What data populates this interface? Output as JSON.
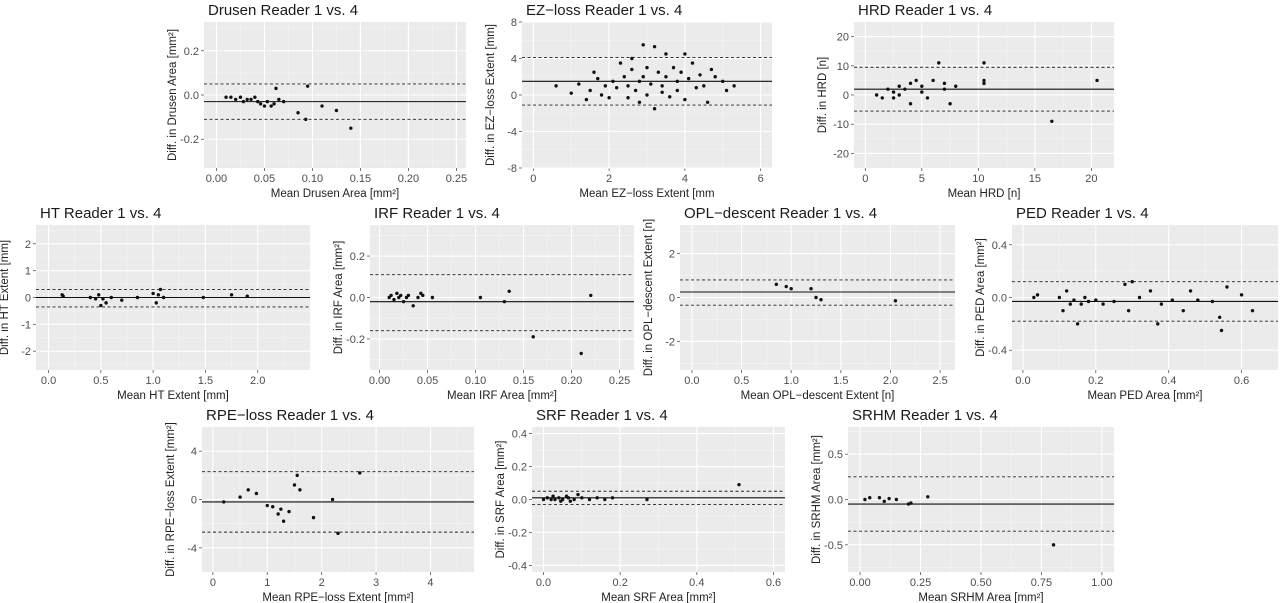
{
  "chart_data": [
    {
      "type": "scatter",
      "title": "Drusen Reader 1 vs. 4",
      "xlabel": "Mean Drusen Area [mm²]",
      "ylabel": "Diff. in Drusen Area [mm²]",
      "xlim": [
        -0.013,
        0.26
      ],
      "ylim": [
        -0.33,
        0.33
      ],
      "xticks": [
        0.0,
        0.05,
        0.1,
        0.15,
        0.2,
        0.25
      ],
      "xticklabels": [
        "0.00",
        "0.05",
        "0.10",
        "0.15",
        "0.20",
        "0.25"
      ],
      "yticks": [
        -0.2,
        0.0,
        0.2
      ],
      "yticklabels": [
        "-0.2",
        "0.0",
        "0.2"
      ],
      "mean_diff": -0.03,
      "upper_loa": 0.05,
      "lower_loa": -0.11,
      "points": [
        [
          0.01,
          -0.01
        ],
        [
          0.015,
          -0.01
        ],
        [
          0.02,
          -0.02
        ],
        [
          0.025,
          -0.01
        ],
        [
          0.028,
          -0.03
        ],
        [
          0.032,
          -0.02
        ],
        [
          0.036,
          -0.02
        ],
        [
          0.04,
          -0.01
        ],
        [
          0.043,
          -0.03
        ],
        [
          0.046,
          -0.04
        ],
        [
          0.05,
          -0.05
        ],
        [
          0.053,
          -0.03
        ],
        [
          0.057,
          -0.05
        ],
        [
          0.06,
          -0.04
        ],
        [
          0.062,
          0.03
        ],
        [
          0.065,
          -0.02
        ],
        [
          0.07,
          -0.03
        ],
        [
          0.085,
          -0.08
        ],
        [
          0.093,
          -0.11
        ],
        [
          0.095,
          0.04
        ],
        [
          0.11,
          -0.05
        ],
        [
          0.125,
          -0.07
        ],
        [
          0.14,
          -0.15
        ]
      ]
    },
    {
      "type": "scatter",
      "title": "EZ−loss Reader 1 vs. 4",
      "xlabel": "Mean EZ−loss Extent [mm",
      "ylabel": "Diff. in EZ−loss Extent [mm]",
      "xlim": [
        -0.3,
        6.3
      ],
      "ylim": [
        -8,
        8
      ],
      "xticks": [
        0,
        2,
        4,
        6
      ],
      "xticklabels": [
        "0",
        "2",
        "4",
        "6"
      ],
      "yticks": [
        -8,
        -4,
        0,
        4,
        8
      ],
      "yticklabels": [
        "-8",
        "-4",
        "0",
        "4",
        "8"
      ],
      "mean_diff": 1.5,
      "upper_loa": 4.1,
      "lower_loa": -1.1,
      "points": [
        [
          0.6,
          1.0
        ],
        [
          1.0,
          0.2
        ],
        [
          1.2,
          1.2
        ],
        [
          1.4,
          -0.5
        ],
        [
          1.5,
          0.5
        ],
        [
          1.6,
          2.5
        ],
        [
          1.7,
          1.8
        ],
        [
          1.8,
          0.0
        ],
        [
          1.9,
          1.0
        ],
        [
          2.0,
          -0.3
        ],
        [
          2.1,
          1.5
        ],
        [
          2.2,
          0.8
        ],
        [
          2.3,
          3.5
        ],
        [
          2.4,
          2.0
        ],
        [
          2.5,
          1.0
        ],
        [
          2.5,
          -0.3
        ],
        [
          2.6,
          4.0
        ],
        [
          2.6,
          2.8
        ],
        [
          2.7,
          0.5
        ],
        [
          2.8,
          1.5
        ],
        [
          2.8,
          -0.8
        ],
        [
          2.9,
          5.5
        ],
        [
          2.9,
          2.0
        ],
        [
          3.0,
          3.0
        ],
        [
          3.0,
          0.0
        ],
        [
          3.1,
          1.2
        ],
        [
          3.2,
          5.3
        ],
        [
          3.2,
          -1.5
        ],
        [
          3.3,
          2.5
        ],
        [
          3.4,
          1.0
        ],
        [
          3.4,
          0.3
        ],
        [
          3.5,
          4.5
        ],
        [
          3.5,
          2.0
        ],
        [
          3.6,
          -0.2
        ],
        [
          3.7,
          3.0
        ],
        [
          3.8,
          1.5
        ],
        [
          3.8,
          0.5
        ],
        [
          3.9,
          2.5
        ],
        [
          4.0,
          4.5
        ],
        [
          4.0,
          -0.5
        ],
        [
          4.1,
          1.8
        ],
        [
          4.2,
          3.5
        ],
        [
          4.3,
          0.8
        ],
        [
          4.4,
          2.2
        ],
        [
          4.5,
          1.0
        ],
        [
          4.6,
          -0.8
        ],
        [
          4.7,
          2.8
        ],
        [
          4.8,
          2.0
        ],
        [
          5.0,
          1.5
        ],
        [
          5.1,
          0.5
        ],
        [
          5.3,
          1.0
        ]
      ]
    },
    {
      "type": "scatter",
      "title": "HRD Reader 1 vs. 4",
      "xlabel": "Mean HRD [n]",
      "ylabel": "Diff. in HRD [n]",
      "xlim": [
        -1,
        22
      ],
      "ylim": [
        -25,
        25
      ],
      "xticks": [
        0,
        5,
        10,
        15,
        20
      ],
      "xticklabels": [
        "0",
        "5",
        "10",
        "15",
        "20"
      ],
      "yticks": [
        -20,
        -10,
        0,
        10,
        20
      ],
      "yticklabels": [
        "-20",
        "-10",
        "0",
        "10",
        "20"
      ],
      "mean_diff": 2,
      "upper_loa": 9.5,
      "lower_loa": -5.5,
      "points": [
        [
          1,
          0
        ],
        [
          1.5,
          -1
        ],
        [
          2,
          2
        ],
        [
          2.5,
          1
        ],
        [
          2.5,
          -1
        ],
        [
          3,
          3
        ],
        [
          3,
          0
        ],
        [
          3.5,
          2
        ],
        [
          4,
          -3
        ],
        [
          4,
          4
        ],
        [
          4.5,
          5
        ],
        [
          5,
          1
        ],
        [
          5,
          3
        ],
        [
          5.5,
          -1
        ],
        [
          6,
          5
        ],
        [
          6.5,
          11
        ],
        [
          7,
          2
        ],
        [
          7,
          4
        ],
        [
          7.5,
          -3
        ],
        [
          8,
          3
        ],
        [
          10.5,
          11
        ],
        [
          10.5,
          5
        ],
        [
          10.5,
          4
        ],
        [
          16.5,
          -9
        ],
        [
          20.5,
          5
        ]
      ]
    },
    {
      "type": "scatter",
      "title": "HT Reader 1 vs. 4",
      "xlabel": "Mean HT Extent [mm]",
      "ylabel": "Diff. in HT Extent [mm]",
      "xlim": [
        -0.12,
        2.5
      ],
      "ylim": [
        -2.7,
        2.7
      ],
      "xticks": [
        0.0,
        0.5,
        1.0,
        1.5,
        2.0
      ],
      "xticklabels": [
        "0.0",
        "0.5",
        "1.0",
        "1.5",
        "2.0"
      ],
      "yticks": [
        -2,
        -1,
        0,
        1,
        2
      ],
      "yticklabels": [
        "-2",
        "-1",
        "0",
        "1",
        "2"
      ],
      "mean_diff": 0.0,
      "upper_loa": 0.3,
      "lower_loa": -0.35,
      "points": [
        [
          0.13,
          0.1
        ],
        [
          0.14,
          0.05
        ],
        [
          0.4,
          0.0
        ],
        [
          0.45,
          -0.05
        ],
        [
          0.48,
          0.1
        ],
        [
          0.5,
          -0.3
        ],
        [
          0.52,
          -0.05
        ],
        [
          0.55,
          -0.2
        ],
        [
          0.6,
          0.0
        ],
        [
          0.7,
          -0.1
        ],
        [
          0.85,
          0.0
        ],
        [
          1.0,
          0.15
        ],
        [
          1.03,
          -0.2
        ],
        [
          1.05,
          0.1
        ],
        [
          1.07,
          0.3
        ],
        [
          1.1,
          0.0
        ],
        [
          1.48,
          0.0
        ],
        [
          1.75,
          0.1
        ],
        [
          1.9,
          0.05
        ]
      ]
    },
    {
      "type": "scatter",
      "title": "IRF Reader 1 vs. 4",
      "xlabel": "Mean IRF Area [mm²]",
      "ylabel": "Diff. in IRF Area [mm²]",
      "xlim": [
        -0.01,
        0.265
      ],
      "ylim": [
        -0.35,
        0.35
      ],
      "xticks": [
        0.0,
        0.05,
        0.1,
        0.15,
        0.2,
        0.25
      ],
      "xticklabels": [
        "0.00",
        "0.05",
        "0.10",
        "0.15",
        "0.20",
        "0.25"
      ],
      "yticks": [
        -0.2,
        0.0,
        0.2
      ],
      "yticklabels": [
        "-0.2",
        "0.0",
        "0.2"
      ],
      "mean_diff": -0.02,
      "upper_loa": 0.11,
      "lower_loa": -0.16,
      "points": [
        [
          0.01,
          0.0
        ],
        [
          0.012,
          0.01
        ],
        [
          0.015,
          -0.01
        ],
        [
          0.018,
          0.02
        ],
        [
          0.02,
          0.0
        ],
        [
          0.022,
          0.01
        ],
        [
          0.025,
          -0.02
        ],
        [
          0.028,
          0.0
        ],
        [
          0.03,
          0.01
        ],
        [
          0.035,
          -0.04
        ],
        [
          0.04,
          0.0
        ],
        [
          0.043,
          0.02
        ],
        [
          0.045,
          0.01
        ],
        [
          0.055,
          0.0
        ],
        [
          0.105,
          0.0
        ],
        [
          0.13,
          -0.02
        ],
        [
          0.135,
          0.03
        ],
        [
          0.16,
          -0.19
        ],
        [
          0.21,
          -0.27
        ],
        [
          0.22,
          0.01
        ]
      ]
    },
    {
      "type": "scatter",
      "title": "OPL−descent Reader 1 vs. 4",
      "xlabel": "Mean OPL−descent Extent [n]",
      "ylabel": "Diff. in OPL−descent Extent [n]",
      "xlim": [
        -0.12,
        2.65
      ],
      "ylim": [
        -3.3,
        3.3
      ],
      "xticks": [
        0.0,
        0.5,
        1.0,
        1.5,
        2.0,
        2.5
      ],
      "xticklabels": [
        "0.0",
        "0.5",
        "1.0",
        "1.5",
        "2.0",
        "2.5"
      ],
      "yticks": [
        -2,
        0,
        2
      ],
      "yticklabels": [
        "-2",
        "0",
        "2"
      ],
      "mean_diff": 0.25,
      "upper_loa": 0.8,
      "lower_loa": -0.35,
      "points": [
        [
          0.85,
          0.6
        ],
        [
          0.95,
          0.5
        ],
        [
          1.0,
          0.4
        ],
        [
          1.2,
          0.4
        ],
        [
          1.25,
          0.0
        ],
        [
          1.3,
          -0.1
        ],
        [
          2.05,
          -0.15
        ]
      ]
    },
    {
      "type": "scatter",
      "title": "PED Reader 1 vs. 4",
      "xlabel": "Mean PED Area [mm²]",
      "ylabel": "Diff. in PED Area [mm²]",
      "xlim": [
        -0.03,
        0.7
      ],
      "ylim": [
        -0.55,
        0.55
      ],
      "xticks": [
        0.0,
        0.2,
        0.4,
        0.6
      ],
      "xticklabels": [
        "0.0",
        "0.2",
        "0.4",
        "0.6"
      ],
      "yticks": [
        -0.4,
        0.0,
        0.4
      ],
      "yticklabels": [
        "-0.4",
        "0.0",
        "0.4"
      ],
      "mean_diff": -0.03,
      "upper_loa": 0.12,
      "lower_loa": -0.18,
      "points": [
        [
          0.03,
          0.0
        ],
        [
          0.04,
          0.02
        ],
        [
          0.1,
          0.0
        ],
        [
          0.11,
          -0.1
        ],
        [
          0.12,
          0.05
        ],
        [
          0.13,
          -0.05
        ],
        [
          0.14,
          -0.02
        ],
        [
          0.15,
          -0.2
        ],
        [
          0.16,
          -0.05
        ],
        [
          0.17,
          0.0
        ],
        [
          0.18,
          -0.03
        ],
        [
          0.2,
          -0.02
        ],
        [
          0.22,
          -0.05
        ],
        [
          0.25,
          -0.03
        ],
        [
          0.28,
          0.1
        ],
        [
          0.29,
          -0.1
        ],
        [
          0.3,
          0.12
        ],
        [
          0.32,
          0.0
        ],
        [
          0.35,
          0.05
        ],
        [
          0.37,
          -0.2
        ],
        [
          0.38,
          -0.05
        ],
        [
          0.41,
          -0.02
        ],
        [
          0.44,
          -0.1
        ],
        [
          0.46,
          0.05
        ],
        [
          0.48,
          -0.02
        ],
        [
          0.52,
          -0.03
        ],
        [
          0.54,
          -0.15
        ],
        [
          0.545,
          -0.25
        ],
        [
          0.56,
          0.08
        ],
        [
          0.6,
          0.02
        ],
        [
          0.63,
          -0.1
        ]
      ]
    },
    {
      "type": "scatter",
      "title": "RPE−loss Reader 1 vs. 4",
      "xlabel": "Mean RPE−loss Extent [mm²]",
      "ylabel": "Diff. in RPE−loss Extent [mm²]",
      "xlim": [
        -0.2,
        4.8
      ],
      "ylim": [
        -6,
        6
      ],
      "xticks": [
        0,
        1,
        2,
        3,
        4
      ],
      "xticklabels": [
        "0",
        "1",
        "2",
        "3",
        "4"
      ],
      "yticks": [
        -4,
        0,
        4
      ],
      "yticklabels": [
        "-4",
        "0",
        "4"
      ],
      "mean_diff": -0.2,
      "upper_loa": 2.3,
      "lower_loa": -2.7,
      "points": [
        [
          0.2,
          -0.2
        ],
        [
          0.5,
          0.2
        ],
        [
          0.65,
          0.8
        ],
        [
          0.8,
          0.5
        ],
        [
          1.0,
          -0.5
        ],
        [
          1.1,
          -0.6
        ],
        [
          1.2,
          -1.2
        ],
        [
          1.25,
          -0.8
        ],
        [
          1.3,
          -1.8
        ],
        [
          1.4,
          -1.0
        ],
        [
          1.5,
          1.2
        ],
        [
          1.55,
          2.0
        ],
        [
          1.6,
          0.8
        ],
        [
          1.85,
          -1.5
        ],
        [
          2.2,
          0.0
        ],
        [
          2.3,
          -2.8
        ],
        [
          2.7,
          2.2
        ]
      ]
    },
    {
      "type": "scatter",
      "title": "SRF Reader 1 vs. 4",
      "xlabel": "Mean SRF Area [mm²]",
      "ylabel": "Diff. in SRF Area [mm²]",
      "xlim": [
        -0.03,
        0.63
      ],
      "ylim": [
        -0.44,
        0.44
      ],
      "xticks": [
        0.0,
        0.2,
        0.4,
        0.6
      ],
      "xticklabels": [
        "0.0",
        "0.2",
        "0.4",
        "0.6"
      ],
      "yticks": [
        -0.4,
        -0.2,
        0.0,
        0.2,
        0.4
      ],
      "yticklabels": [
        "-0.4",
        "-0.2",
        "0.0",
        "0.2",
        "0.4"
      ],
      "mean_diff": 0.01,
      "upper_loa": 0.05,
      "lower_loa": -0.03,
      "points": [
        [
          0.0,
          0.0
        ],
        [
          0.01,
          0.01
        ],
        [
          0.02,
          0.0
        ],
        [
          0.025,
          0.02
        ],
        [
          0.03,
          0.0
        ],
        [
          0.04,
          0.01
        ],
        [
          0.045,
          -0.01
        ],
        [
          0.05,
          0.0
        ],
        [
          0.06,
          0.02
        ],
        [
          0.065,
          0.01
        ],
        [
          0.07,
          -0.01
        ],
        [
          0.08,
          0.0
        ],
        [
          0.09,
          0.03
        ],
        [
          0.1,
          0.01
        ],
        [
          0.12,
          0.0
        ],
        [
          0.14,
          0.01
        ],
        [
          0.16,
          0.0
        ],
        [
          0.18,
          0.01
        ],
        [
          0.27,
          0.0
        ],
        [
          0.51,
          0.09
        ]
      ]
    },
    {
      "type": "scatter",
      "title": "SRHM Reader 1 vs. 4",
      "xlabel": "Mean SRHM Area [mm²]",
      "ylabel": "Diff. in SRHM Area [mm²]",
      "xlim": [
        -0.05,
        1.05
      ],
      "ylim": [
        -0.8,
        0.8
      ],
      "xticks": [
        0.0,
        0.25,
        0.5,
        0.75,
        1.0
      ],
      "xticklabels": [
        "0.00",
        "0.25",
        "0.50",
        "0.75",
        "1.00"
      ],
      "yticks": [
        -0.5,
        0.0,
        0.5
      ],
      "yticklabels": [
        "-0.5",
        "0.0",
        "0.5"
      ],
      "mean_diff": -0.05,
      "upper_loa": 0.25,
      "lower_loa": -0.35,
      "points": [
        [
          0.02,
          0.0
        ],
        [
          0.04,
          0.02
        ],
        [
          0.08,
          0.02
        ],
        [
          0.1,
          -0.02
        ],
        [
          0.12,
          0.01
        ],
        [
          0.15,
          0.0
        ],
        [
          0.2,
          -0.05
        ],
        [
          0.21,
          -0.04
        ],
        [
          0.28,
          0.03
        ],
        [
          0.8,
          -0.5
        ]
      ]
    }
  ]
}
